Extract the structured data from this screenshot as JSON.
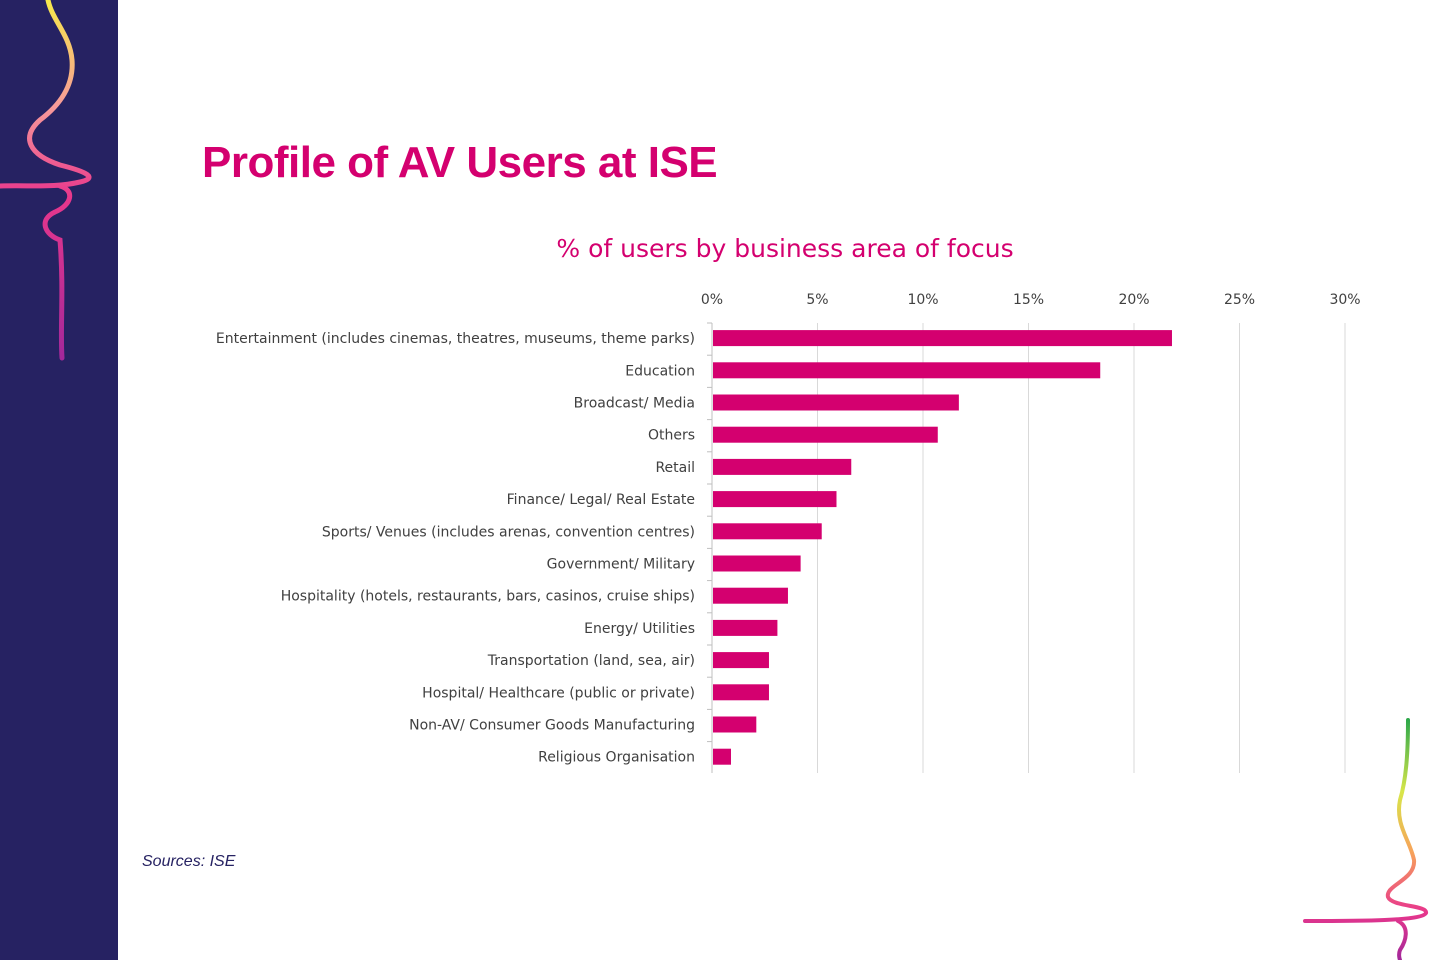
{
  "slide": {
    "title": "Profile of AV Users at ISE",
    "source": "Sources: ISE"
  },
  "colors": {
    "side_band": "#262262",
    "accent": "#d4006f",
    "grid": "#d9d9d9",
    "text": "#404040"
  },
  "chart_data": {
    "type": "bar",
    "orientation": "horizontal",
    "title": "% of users by business area of focus",
    "xlabel": "",
    "ylabel": "",
    "x_axis_position": "top",
    "xlim": [
      0,
      30
    ],
    "x_ticks": [
      "0%",
      "5%",
      "10%",
      "15%",
      "20%",
      "25%",
      "30%"
    ],
    "grid": true,
    "categories": [
      "Entertainment (includes cinemas, theatres, museums, theme parks)",
      "Education",
      "Broadcast/ Media",
      "Others",
      "Retail",
      "Finance/ Legal/ Real Estate",
      "Sports/ Venues (includes arenas, convention centres)",
      "Government/ Military",
      "Hospitality (hotels, restaurants, bars, casinos, cruise ships)",
      "Energy/ Utilities",
      "Transportation (land, sea, air)",
      "Hospital/ Healthcare (public or private)",
      "Non-AV/ Consumer Goods Manufacturing",
      "Religious Organisation"
    ],
    "values": [
      21.8,
      18.4,
      11.7,
      10.7,
      6.6,
      5.9,
      5.2,
      4.2,
      3.6,
      3.1,
      2.7,
      2.7,
      2.1,
      0.9
    ],
    "bar_color": "#d4006f"
  }
}
